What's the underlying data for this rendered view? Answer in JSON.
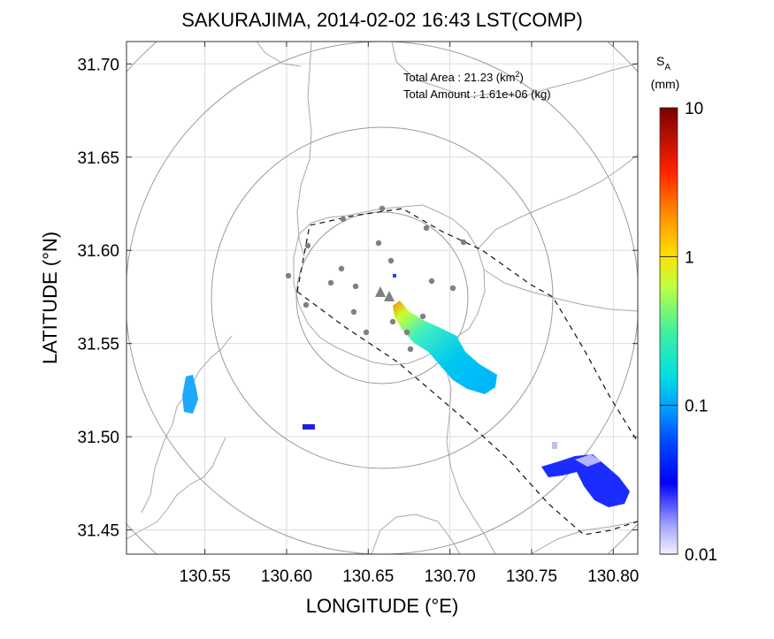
{
  "title": "SAKURAJIMA, 2014-02-02 16:43 LST(COMP)",
  "xlabel": "LONGITUDE (°E)",
  "ylabel": "LATITUDE (°N)",
  "xticks": [
    "130.55",
    "130.60",
    "130.65",
    "130.70",
    "130.75",
    "130.80"
  ],
  "yticks": [
    "31.70",
    "31.65",
    "31.60",
    "31.55",
    "31.50",
    "31.45"
  ],
  "info": {
    "area_label": "Total Area   : 21.23 (km",
    "area_sup": "2",
    "area_close": ")",
    "amount": "Total Amount : 1.61e+06 (kg)"
  },
  "colorbar": {
    "symbol": "S",
    "symbol_sub": "A",
    "unit": "(mm)",
    "ticks": [
      "10",
      "1",
      "0.1",
      "0.01"
    ],
    "scale": "log",
    "range": [
      0.01,
      10
    ],
    "colormap": "jet-like, white-lavender at 0.01 to dark red at 10"
  },
  "map": {
    "lon_range": [
      130.502,
      130.815
    ],
    "lat_range": [
      31.437,
      31.712
    ],
    "vent_marker": "triangle",
    "station_marker": "dot",
    "range_rings": 4,
    "grid": true
  },
  "colors": {
    "coast": "#a8a8a8",
    "grid": "#dcdcdc",
    "ring": "#9a9a9a",
    "marker": "#808080"
  }
}
